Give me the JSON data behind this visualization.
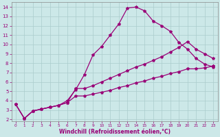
{
  "xlabel": "Windchill (Refroidissement éolien,°C)",
  "bg_color": "#cce8e8",
  "grid_color": "#b0d4d4",
  "line_color": "#990077",
  "xlim": [
    -0.5,
    23.5
  ],
  "ylim": [
    1.8,
    14.5
  ],
  "xticks": [
    0,
    1,
    2,
    3,
    4,
    5,
    6,
    7,
    8,
    9,
    10,
    11,
    12,
    13,
    14,
    15,
    16,
    17,
    18,
    19,
    20,
    21,
    22,
    23
  ],
  "yticks": [
    2,
    3,
    4,
    5,
    6,
    7,
    8,
    9,
    10,
    11,
    12,
    13,
    14
  ],
  "line1_x": [
    0,
    1,
    2,
    3,
    4,
    5,
    6,
    7,
    8,
    9,
    10,
    11,
    12,
    13,
    14,
    15,
    16,
    17,
    18,
    19,
    20,
    21,
    22,
    23
  ],
  "line1_y": [
    3.6,
    2.1,
    2.9,
    3.1,
    3.3,
    3.5,
    4.0,
    5.2,
    6.8,
    8.9,
    9.8,
    11.0,
    12.2,
    13.9,
    14.0,
    13.6,
    12.5,
    12.0,
    11.4,
    10.2,
    9.5,
    8.5,
    7.9,
    7.6
  ],
  "line2_x": [
    0,
    1,
    2,
    3,
    4,
    5,
    6,
    7,
    8,
    9,
    10,
    11,
    12,
    13,
    14,
    15,
    16,
    17,
    18,
    19,
    20,
    21,
    22,
    23
  ],
  "line2_y": [
    3.6,
    2.1,
    2.9,
    3.1,
    3.3,
    3.5,
    3.8,
    5.3,
    5.3,
    5.6,
    6.0,
    6.4,
    6.8,
    7.2,
    7.6,
    7.9,
    8.3,
    8.7,
    9.2,
    9.7,
    10.3,
    9.5,
    9.0,
    8.5
  ],
  "line3_x": [
    0,
    1,
    2,
    3,
    4,
    5,
    6,
    7,
    8,
    9,
    10,
    11,
    12,
    13,
    14,
    15,
    16,
    17,
    18,
    19,
    20,
    21,
    22,
    23
  ],
  "line3_y": [
    3.6,
    2.1,
    2.9,
    3.1,
    3.3,
    3.5,
    3.8,
    4.5,
    4.5,
    4.7,
    4.9,
    5.1,
    5.4,
    5.6,
    5.9,
    6.1,
    6.4,
    6.6,
    6.9,
    7.1,
    7.4,
    7.4,
    7.5,
    7.7
  ]
}
